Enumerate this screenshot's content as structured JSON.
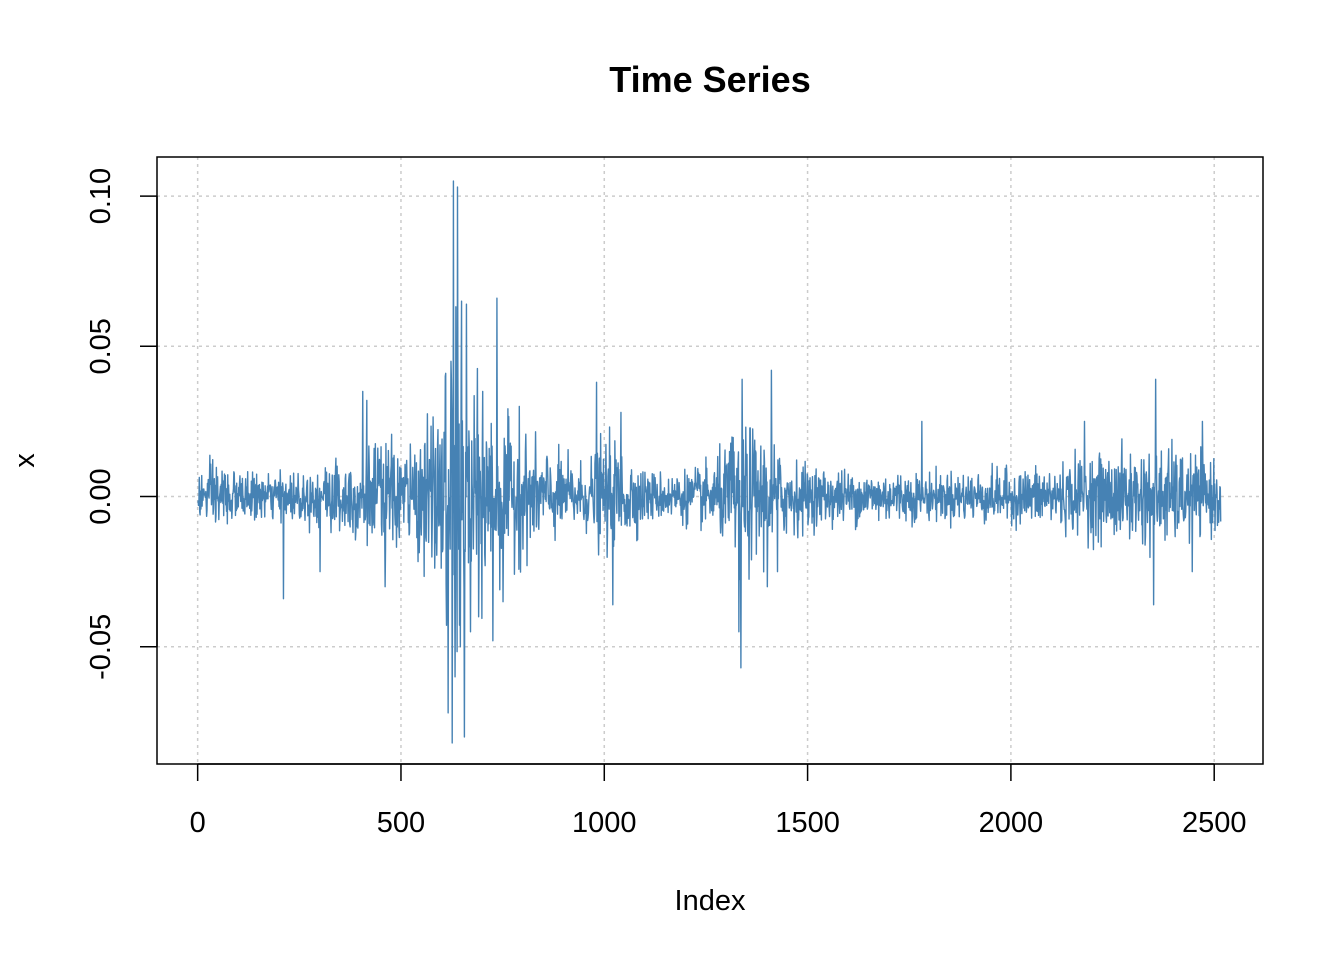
{
  "chart_data": {
    "type": "line",
    "title": "Time Series",
    "xlabel": "Index",
    "ylabel": "x",
    "xlim": [
      -100,
      2620
    ],
    "ylim": [
      -0.089,
      0.113
    ],
    "x_ticks": [
      0,
      500,
      1000,
      1500,
      2000,
      2500
    ],
    "x_tick_labels": [
      "0",
      "500",
      "1000",
      "1500",
      "2000",
      "2500"
    ],
    "y_ticks": [
      -0.05,
      0.0,
      0.05,
      0.1
    ],
    "y_tick_labels": [
      "-0.05",
      "0.00",
      "0.05",
      "0.10"
    ],
    "grid": true,
    "legend": "none",
    "colors": {
      "series": "#4682b4",
      "grid": "#cccccc",
      "axis": "#000000"
    },
    "series": [
      {
        "n_points": 2516,
        "envelope": {
          "index": [
            0,
            50,
            100,
            150,
            200,
            250,
            300,
            350,
            400,
            450,
            500,
            550,
            600,
            620,
            640,
            660,
            680,
            700,
            720,
            750,
            800,
            850,
            900,
            950,
            1000,
            1050,
            1100,
            1150,
            1200,
            1250,
            1300,
            1330,
            1350,
            1400,
            1450,
            1500,
            1600,
            1700,
            1800,
            1900,
            2000,
            2100,
            2200,
            2300,
            2350,
            2400,
            2450,
            2516
          ],
          "max_abs": [
            0.009,
            0.015,
            0.008,
            0.009,
            0.008,
            0.01,
            0.012,
            0.016,
            0.018,
            0.022,
            0.02,
            0.022,
            0.04,
            0.06,
            0.07,
            0.055,
            0.045,
            0.04,
            0.035,
            0.028,
            0.022,
            0.018,
            0.015,
            0.012,
            0.022,
            0.018,
            0.01,
            0.009,
            0.01,
            0.012,
            0.018,
            0.035,
            0.028,
            0.022,
            0.015,
            0.012,
            0.01,
            0.01,
            0.009,
            0.01,
            0.01,
            0.012,
            0.016,
            0.018,
            0.02,
            0.018,
            0.016,
            0.012
          ]
        },
        "spikes": [
          {
            "index": 210,
            "value": -0.034
          },
          {
            "index": 300,
            "value": -0.025
          },
          {
            "index": 405,
            "value": 0.035
          },
          {
            "index": 415,
            "value": 0.032
          },
          {
            "index": 460,
            "value": -0.03
          },
          {
            "index": 608,
            "value": 0.04
          },
          {
            "index": 615,
            "value": -0.072
          },
          {
            "index": 622,
            "value": 0.045
          },
          {
            "index": 625,
            "value": -0.082
          },
          {
            "index": 628,
            "value": 0.105
          },
          {
            "index": 632,
            "value": -0.06
          },
          {
            "index": 638,
            "value": 0.103
          },
          {
            "index": 645,
            "value": -0.05
          },
          {
            "index": 648,
            "value": 0.065
          },
          {
            "index": 655,
            "value": -0.08
          },
          {
            "index": 660,
            "value": 0.064
          },
          {
            "index": 670,
            "value": -0.045
          },
          {
            "index": 690,
            "value": -0.04
          },
          {
            "index": 700,
            "value": 0.035
          },
          {
            "index": 725,
            "value": -0.048
          },
          {
            "index": 735,
            "value": 0.066
          },
          {
            "index": 750,
            "value": -0.035
          },
          {
            "index": 790,
            "value": 0.03
          },
          {
            "index": 980,
            "value": 0.038
          },
          {
            "index": 1020,
            "value": -0.036
          },
          {
            "index": 1040,
            "value": 0.028
          },
          {
            "index": 1330,
            "value": -0.045
          },
          {
            "index": 1335,
            "value": -0.057
          },
          {
            "index": 1338,
            "value": 0.039
          },
          {
            "index": 1400,
            "value": -0.03
          },
          {
            "index": 1410,
            "value": 0.042
          },
          {
            "index": 1425,
            "value": -0.025
          },
          {
            "index": 1780,
            "value": 0.025
          },
          {
            "index": 2180,
            "value": 0.025
          },
          {
            "index": 2350,
            "value": -0.036
          },
          {
            "index": 2355,
            "value": 0.039
          },
          {
            "index": 2445,
            "value": -0.025
          },
          {
            "index": 2470,
            "value": 0.025
          }
        ]
      }
    ]
  }
}
